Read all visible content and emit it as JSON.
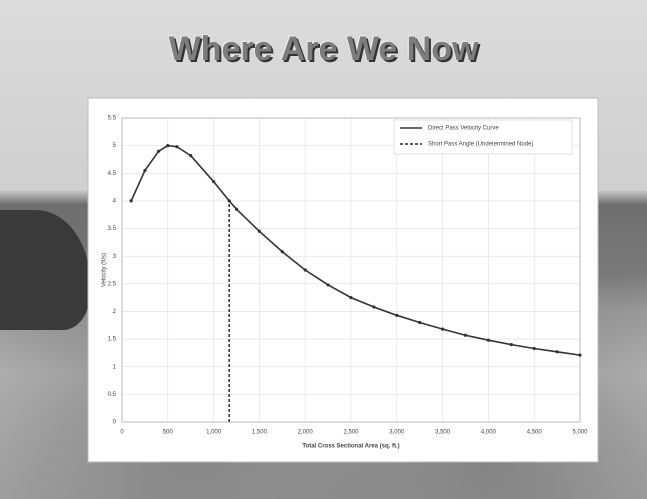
{
  "title": "Where Are We Now",
  "chart_data": {
    "type": "line",
    "x_label": "Total Cross Sectional Area (sq. ft.)",
    "y_label": "Velocity (ft/s)",
    "xlim": [
      0,
      5000
    ],
    "xticks": [
      0,
      500,
      {
        "value": 1000,
        "label": "1,000"
      },
      {
        "value": 1500,
        "label": "1,500"
      },
      {
        "value": 2000,
        "label": "2,000"
      },
      {
        "value": 2500,
        "label": "2,500"
      },
      {
        "value": 3000,
        "label": "3,000"
      },
      {
        "value": 3500,
        "label": "3,500"
      },
      {
        "value": 4000,
        "label": "4,000"
      },
      {
        "value": 4500,
        "label": "4,500"
      },
      {
        "value": 5000,
        "label": "5,000"
      }
    ],
    "ylim": [
      0,
      5.5
    ],
    "yticks": [
      0,
      0.5,
      1,
      1.5,
      2,
      2.5,
      3,
      3.5,
      4,
      4.5,
      5,
      5.5
    ],
    "grid": true,
    "legend_position": "upper right",
    "series": [
      {
        "name": "Direct Pass Velocity Curve",
        "color": "#333333",
        "style": "solid",
        "x": [
          100,
          250,
          400,
          500,
          600,
          750,
          1000,
          1170,
          1250,
          1500,
          1750,
          2000,
          2250,
          2500,
          2750,
          3000,
          3250,
          3500,
          3750,
          4000,
          4250,
          4500,
          4750,
          5000
        ],
        "values": [
          4.0,
          4.55,
          4.9,
          5.0,
          4.98,
          4.82,
          4.35,
          4.0,
          3.85,
          3.45,
          3.08,
          2.75,
          2.48,
          2.25,
          2.08,
          1.93,
          1.8,
          1.68,
          1.57,
          1.48,
          1.4,
          1.33,
          1.27,
          1.21
        ]
      },
      {
        "name": "Short Pass Angle (Undetermined Node)",
        "color": "#222222",
        "style": "dashed",
        "x": [
          1170,
          1170
        ],
        "values": [
          0,
          4.0
        ]
      }
    ]
  }
}
